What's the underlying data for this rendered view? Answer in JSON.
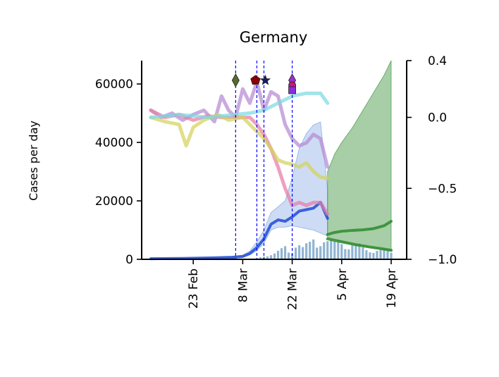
{
  "chart_data": {
    "type": "line",
    "title": "Germany",
    "ylabel": "Cases per day",
    "y_left": {
      "lim": [
        0,
        68000
      ],
      "ticks": [
        0,
        20000,
        40000,
        60000
      ]
    },
    "y_right": {
      "lim": [
        -1.0,
        0.4
      ],
      "ticks": [
        -1.0,
        -0.5,
        0.0,
        0.4
      ],
      "tick_labels": [
        "−1.0",
        "−0.5",
        "0.0",
        "0.4"
      ]
    },
    "x_ticks": [
      {
        "date": "2020-02-23",
        "label": "23 Feb"
      },
      {
        "date": "2020-03-08",
        "label": "8 Mar"
      },
      {
        "date": "2020-03-22",
        "label": "22 Mar"
      },
      {
        "date": "2020-04-05",
        "label": "5 Apr"
      },
      {
        "date": "2020-04-19",
        "label": "19 Apr"
      }
    ],
    "x_range": [
      "2020-02-11",
      "2020-04-19"
    ],
    "grid": false,
    "event_lines": [
      "2020-03-06",
      "2020-03-12",
      "2020-03-14",
      "2020-03-22"
    ],
    "event_markers": [
      {
        "date": "2020-03-06",
        "symbols": [
          {
            "shape": "diamond",
            "color": "#556b2f"
          }
        ]
      },
      {
        "date": "2020-03-12",
        "symbols": [
          {
            "shape": "pentagon",
            "color": "#8b0000"
          }
        ]
      },
      {
        "date": "2020-03-14",
        "symbols": [
          {
            "shape": "star",
            "color": "#191970"
          }
        ]
      },
      {
        "date": "2020-03-22",
        "symbols": [
          {
            "shape": "diamond",
            "color": "#9932cc"
          },
          {
            "shape": "circle",
            "color": "#c71585"
          },
          {
            "shape": "square",
            "color": "#8a2be2"
          }
        ]
      }
    ],
    "series": [
      {
        "axis": "left",
        "color": "#1f4bd8",
        "style": "line-band",
        "band_color": "#6f9be0",
        "dates": [
          "2020-02-11",
          "2020-02-20",
          "2020-02-29",
          "2020-03-05",
          "2020-03-08",
          "2020-03-10",
          "2020-03-12",
          "2020-03-14",
          "2020-03-16",
          "2020-03-18",
          "2020-03-20",
          "2020-03-22",
          "2020-03-24",
          "2020-03-26",
          "2020-03-28",
          "2020-03-30",
          "2020-04-01"
        ],
        "values": [
          200,
          300,
          500,
          700,
          1000,
          2000,
          4000,
          7000,
          12000,
          13500,
          13000,
          14500,
          16500,
          17000,
          17500,
          19500,
          14000
        ],
        "lower": [
          100,
          200,
          300,
          500,
          700,
          1500,
          3000,
          5500,
          10000,
          11000,
          11000,
          11500,
          11000,
          10500,
          10000,
          9000,
          8000
        ],
        "upper": [
          300,
          400,
          700,
          1000,
          1400,
          2800,
          6000,
          10000,
          16000,
          18000,
          20000,
          28000,
          38000,
          43000,
          46000,
          47000,
          24000
        ]
      },
      {
        "axis": "left",
        "color": "#2e8b2e",
        "style": "line-band",
        "band_opacity": 0.42,
        "dates": [
          "2020-04-01",
          "2020-04-03",
          "2020-04-05",
          "2020-04-08",
          "2020-04-11",
          "2020-04-14",
          "2020-04-17",
          "2020-04-19"
        ],
        "values": [
          8500,
          9200,
          9600,
          9900,
          10100,
          10500,
          11500,
          13000
        ],
        "lower": [
          7500,
          6800,
          6000,
          5200,
          4500,
          3900,
          3300,
          2900
        ],
        "upper": [
          30000,
          36000,
          40000,
          45000,
          51000,
          57000,
          63000,
          68000
        ]
      },
      {
        "axis": "left",
        "color": "#2e8b2e",
        "style": "line",
        "dates": [
          "2020-04-01",
          "2020-04-05",
          "2020-04-09",
          "2020-04-13",
          "2020-04-17",
          "2020-04-19"
        ],
        "values": [
          7000,
          6000,
          5000,
          4200,
          3500,
          3100
        ]
      },
      {
        "axis": "left",
        "color": "#4682b4",
        "style": "bars",
        "dates": [
          "2020-03-13",
          "2020-03-14",
          "2020-03-15",
          "2020-03-16",
          "2020-03-17",
          "2020-03-18",
          "2020-03-19",
          "2020-03-20",
          "2020-03-21",
          "2020-03-22",
          "2020-03-23",
          "2020-03-24",
          "2020-03-25",
          "2020-03-26",
          "2020-03-27",
          "2020-03-28",
          "2020-03-29",
          "2020-03-30",
          "2020-03-31",
          "2020-04-01",
          "2020-04-02",
          "2020-04-03",
          "2020-04-04",
          "2020-04-05",
          "2020-04-06",
          "2020-04-07",
          "2020-04-08",
          "2020-04-09",
          "2020-04-10",
          "2020-04-11",
          "2020-04-12",
          "2020-04-13",
          "2020-04-14",
          "2020-04-15",
          "2020-04-16",
          "2020-04-17",
          "2020-04-18",
          "2020-04-19"
        ],
        "values": [
          700,
          900,
          1000,
          1400,
          2000,
          2900,
          3800,
          4500,
          2300,
          1900,
          4000,
          4800,
          4200,
          5500,
          6000,
          6800,
          4000,
          4500,
          5800,
          6200,
          6800,
          6300,
          6100,
          5200,
          3500,
          3400,
          4800,
          5000,
          5400,
          4100,
          3100,
          2400,
          2200,
          2900,
          3200,
          3300,
          3000,
          2300
        ]
      },
      {
        "axis": "right",
        "color": "#b48ad3",
        "style": "line",
        "dates": [
          "2020-02-11",
          "2020-02-14",
          "2020-02-17",
          "2020-02-20",
          "2020-02-23",
          "2020-02-26",
          "2020-02-29",
          "2020-03-02",
          "2020-03-04",
          "2020-03-06",
          "2020-03-08",
          "2020-03-10",
          "2020-03-12",
          "2020-03-14",
          "2020-03-16",
          "2020-03-18",
          "2020-03-20",
          "2020-03-22",
          "2020-03-24",
          "2020-03-26",
          "2020-03-28",
          "2020-03-30",
          "2020-04-01"
        ],
        "values": [
          0.05,
          0.0,
          0.03,
          -0.02,
          0.02,
          0.05,
          -0.03,
          0.15,
          0.05,
          0.0,
          0.2,
          0.1,
          0.25,
          0.05,
          0.18,
          0.15,
          -0.05,
          -0.15,
          -0.2,
          -0.18,
          -0.12,
          -0.15,
          -0.35
        ]
      },
      {
        "axis": "right",
        "color": "#e87ba6",
        "style": "line",
        "dates": [
          "2020-02-11",
          "2020-02-15",
          "2020-02-19",
          "2020-02-23",
          "2020-02-27",
          "2020-03-02",
          "2020-03-06",
          "2020-03-10",
          "2020-03-12",
          "2020-03-14",
          "2020-03-16",
          "2020-03-18",
          "2020-03-20",
          "2020-03-22",
          "2020-03-24",
          "2020-03-26",
          "2020-03-28",
          "2020-03-30",
          "2020-04-01"
        ],
        "values": [
          0.05,
          0.0,
          0.02,
          -0.02,
          0.01,
          0.0,
          0.0,
          0.0,
          -0.05,
          -0.12,
          -0.22,
          -0.35,
          -0.5,
          -0.62,
          -0.6,
          -0.62,
          -0.6,
          -0.6,
          -0.68
        ]
      },
      {
        "axis": "right",
        "color": "#d4d25a",
        "style": "line",
        "dates": [
          "2020-02-11",
          "2020-02-15",
          "2020-02-19",
          "2020-02-21",
          "2020-02-23",
          "2020-02-26",
          "2020-03-01",
          "2020-03-04",
          "2020-03-08",
          "2020-03-12",
          "2020-03-14",
          "2020-03-16",
          "2020-03-18",
          "2020-03-20",
          "2020-03-22",
          "2020-03-24",
          "2020-03-26",
          "2020-03-28",
          "2020-03-30",
          "2020-04-01"
        ],
        "values": [
          0.0,
          -0.03,
          -0.05,
          -0.2,
          -0.07,
          -0.02,
          0.02,
          -0.02,
          0.0,
          -0.1,
          -0.15,
          -0.22,
          -0.3,
          -0.32,
          -0.33,
          -0.35,
          -0.32,
          -0.38,
          -0.42,
          -0.43
        ]
      },
      {
        "axis": "right",
        "color": "#7dd9e3",
        "style": "line",
        "dates": [
          "2020-02-11",
          "2020-02-15",
          "2020-02-19",
          "2020-02-23",
          "2020-02-27",
          "2020-03-02",
          "2020-03-06",
          "2020-03-10",
          "2020-03-14",
          "2020-03-18",
          "2020-03-22",
          "2020-03-26",
          "2020-03-30",
          "2020-04-01"
        ],
        "values": [
          0.0,
          0.01,
          0.02,
          0.01,
          0.0,
          0.01,
          0.02,
          0.03,
          0.05,
          0.1,
          0.15,
          0.17,
          0.17,
          0.1
        ]
      }
    ]
  }
}
